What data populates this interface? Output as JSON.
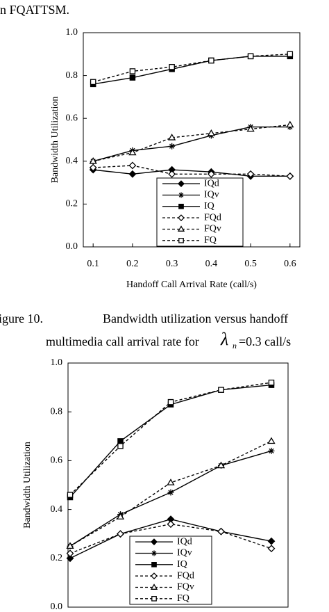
{
  "header": {
    "text": "n FQATTSM."
  },
  "caption": {
    "label": "igure 10.",
    "line1": "Bandwidth utilization versus handoff",
    "line2": "multimedia call arrival rate for",
    "symbol": "λ",
    "subscript": "n",
    "line2_end": "=0.3 call/s"
  },
  "chart_data": [
    {
      "type": "line",
      "ylabel": "Bandwidth Utilization",
      "xlabel": "Handoff Call Arrival Rate (call/s)",
      "x": [
        0.1,
        0.2,
        0.3,
        0.4,
        0.5,
        0.6
      ],
      "xlim": [
        0.075,
        0.625
      ],
      "xticks": [
        0.1,
        0.2,
        0.3,
        0.4,
        0.5,
        0.6
      ],
      "ylim": [
        0,
        1
      ],
      "yticks": [
        {
          "value": 0,
          "label": "0.0"
        },
        0.2,
        0.4,
        0.6,
        0.8,
        {
          "value": 1,
          "label": "1.0"
        }
      ],
      "legend": "bottom-center",
      "series": [
        {
          "name": "IQd",
          "color": "#000000",
          "marker": "diamond",
          "filled": true,
          "dashed": false,
          "values": [
            0.36,
            0.34,
            0.36,
            0.35,
            0.33,
            0.33
          ]
        },
        {
          "name": "IQv",
          "color": "#000000",
          "marker": "star",
          "filled": true,
          "dashed": false,
          "values": [
            0.4,
            0.45,
            0.47,
            0.52,
            0.56,
            0.56
          ]
        },
        {
          "name": "IQ",
          "color": "#000000",
          "marker": "square",
          "filled": true,
          "dashed": false,
          "values": [
            0.76,
            0.79,
            0.83,
            0.87,
            0.89,
            0.89
          ]
        },
        {
          "name": "FQd",
          "color": "#000000",
          "marker": "diamond",
          "filled": false,
          "dashed": true,
          "values": [
            0.37,
            0.38,
            0.34,
            0.34,
            0.34,
            0.33
          ]
        },
        {
          "name": "FQv",
          "color": "#000000",
          "marker": "triangle",
          "filled": false,
          "dashed": true,
          "values": [
            0.4,
            0.44,
            0.51,
            0.53,
            0.55,
            0.57
          ]
        },
        {
          "name": "FQ",
          "color": "#000000",
          "marker": "square",
          "filled": false,
          "dashed": true,
          "values": [
            0.77,
            0.82,
            0.84,
            0.87,
            0.89,
            0.9
          ]
        }
      ]
    },
    {
      "type": "line",
      "ylabel": "Bandwidth Utilization",
      "categories": [
        null,
        null,
        null,
        null,
        null
      ],
      "ylim": [
        0,
        1
      ],
      "yticks": [
        {
          "value": 0,
          "label": "0.0"
        },
        0.2,
        0.4,
        0.6,
        0.8,
        {
          "value": 1,
          "label": "1.0"
        }
      ],
      "legend": "bottom-center",
      "series": [
        {
          "name": "IQd",
          "color": "#000000",
          "marker": "diamond",
          "filled": true,
          "dashed": false,
          "values": [
            0.2,
            0.3,
            0.36,
            0.31,
            0.27
          ]
        },
        {
          "name": "IQv",
          "color": "#000000",
          "marker": "star",
          "filled": true,
          "dashed": false,
          "values": [
            0.25,
            0.38,
            0.47,
            0.58,
            0.64
          ]
        },
        {
          "name": "IQ",
          "color": "#000000",
          "marker": "square",
          "filled": true,
          "dashed": false,
          "values": [
            0.45,
            0.68,
            0.83,
            0.89,
            0.91
          ]
        },
        {
          "name": "FQd",
          "color": "#000000",
          "marker": "diamond",
          "filled": false,
          "dashed": true,
          "values": [
            0.22,
            0.3,
            0.34,
            0.31,
            0.24
          ]
        },
        {
          "name": "FQv",
          "color": "#000000",
          "marker": "triangle",
          "filled": false,
          "dashed": true,
          "values": [
            0.25,
            0.37,
            0.51,
            0.58,
            0.68
          ]
        },
        {
          "name": "FQ",
          "color": "#000000",
          "marker": "square",
          "filled": false,
          "dashed": true,
          "values": [
            0.46,
            0.66,
            0.84,
            0.89,
            0.92
          ]
        }
      ]
    }
  ]
}
